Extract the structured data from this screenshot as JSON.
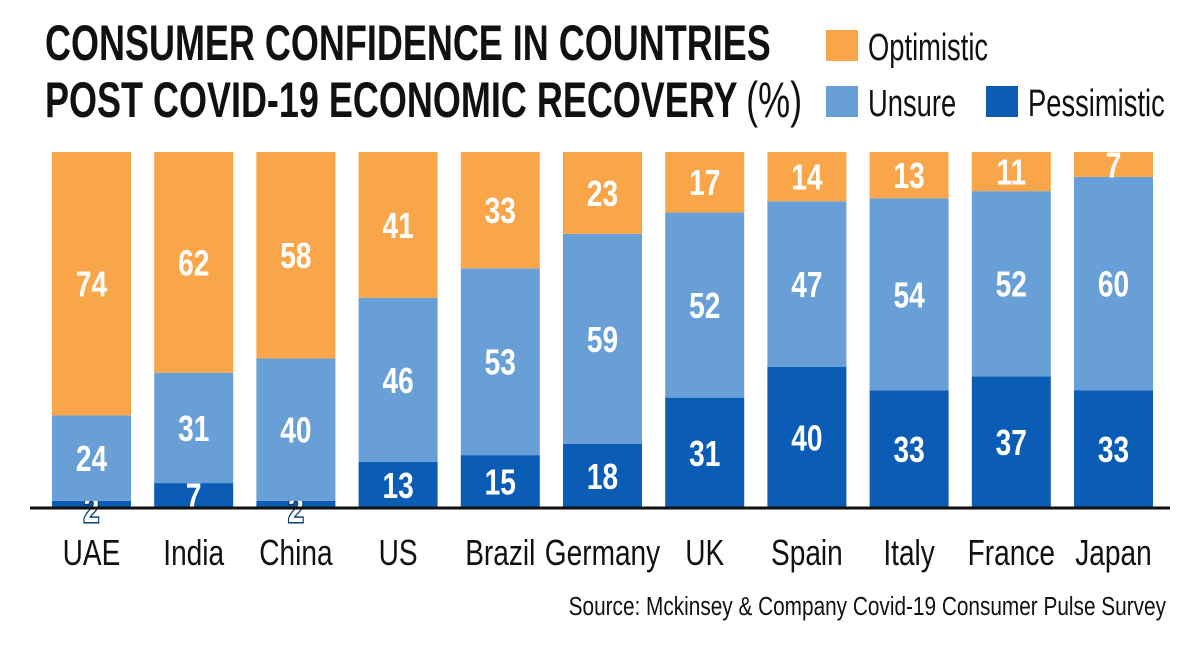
{
  "chart_data": {
    "type": "bar",
    "stacked": true,
    "title_line1": "CONSUMER CONFIDENCE IN COUNTRIES",
    "title_line2": "POST COVID-19 ECONOMIC RECOVERY",
    "title_unit": "(%)",
    "source": "Source: Mckinsey & Company Covid-19 Consumer Pulse Survey",
    "categories": [
      "UAE",
      "India",
      "China",
      "US",
      "Brazil",
      "Germany",
      "UK",
      "Spain",
      "Italy",
      "France",
      "Japan"
    ],
    "series": [
      {
        "name": "Pessimistic",
        "color": "#0b5cb5",
        "values": [
          2,
          7,
          2,
          13,
          15,
          18,
          31,
          40,
          33,
          37,
          33
        ]
      },
      {
        "name": "Unsure",
        "color": "#689fd6",
        "values": [
          24,
          31,
          40,
          46,
          53,
          59,
          52,
          47,
          54,
          52,
          60
        ]
      },
      {
        "name": "Optimistic",
        "color": "#f9a64b",
        "values": [
          74,
          62,
          58,
          41,
          33,
          23,
          17,
          14,
          13,
          11,
          7
        ]
      }
    ],
    "legend_order": [
      "Optimistic",
      "Unsure",
      "Pessimistic"
    ],
    "legend_placement": "top-right",
    "ylim": [
      0,
      100
    ],
    "grid": false
  }
}
